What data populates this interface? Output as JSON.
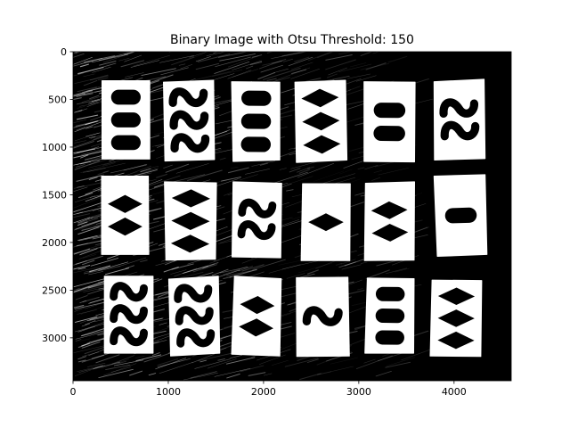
{
  "chart_data": {
    "type": "image",
    "title": "Binary Image with Otsu Threshold: 150",
    "xlabel": "",
    "ylabel": "",
    "xlim": [
      0,
      4600
    ],
    "ylim": [
      3450,
      0
    ],
    "xticks": [
      0,
      1000,
      2000,
      3000,
      4000
    ],
    "yticks": [
      0,
      500,
      1000,
      1500,
      2000,
      2500,
      3000
    ],
    "xtick_labels": [
      "0",
      "1000",
      "2000",
      "3000",
      "4000"
    ],
    "ytick_labels": [
      "0",
      "500",
      "1000",
      "1500",
      "2000",
      "2500",
      "3000"
    ],
    "grid": false,
    "colormap": "gray",
    "background_color": "#000000",
    "foreground_color": "#ffffff",
    "cards": [
      {
        "row": 1,
        "col": 1,
        "count": 3,
        "shape": "oval",
        "corners": [
          [
            305,
            305
          ],
          [
            805,
            305
          ],
          [
            805,
            1125
          ],
          [
            305,
            1125
          ]
        ]
      },
      {
        "row": 1,
        "col": 2,
        "count": 3,
        "shape": "squiggle",
        "corners": [
          [
            950,
            320
          ],
          [
            1475,
            300
          ],
          [
            1485,
            1130
          ],
          [
            965,
            1145
          ]
        ]
      },
      {
        "row": 1,
        "col": 3,
        "count": 3,
        "shape": "oval",
        "corners": [
          [
            1665,
            315
          ],
          [
            2170,
            320
          ],
          [
            2170,
            1135
          ],
          [
            1680,
            1150
          ]
        ]
      },
      {
        "row": 1,
        "col": 4,
        "count": 3,
        "shape": "diamond",
        "corners": [
          [
            2330,
            320
          ],
          [
            2860,
            300
          ],
          [
            2875,
            1135
          ],
          [
            2345,
            1160
          ]
        ]
      },
      {
        "row": 1,
        "col": 5,
        "count": 2,
        "shape": "oval",
        "corners": [
          [
            3055,
            315
          ],
          [
            3590,
            320
          ],
          [
            3585,
            1155
          ],
          [
            3055,
            1150
          ]
        ]
      },
      {
        "row": 1,
        "col": 6,
        "count": 2,
        "shape": "squiggle",
        "corners": [
          [
            3790,
            315
          ],
          [
            4315,
            290
          ],
          [
            4325,
            1120
          ],
          [
            3795,
            1135
          ]
        ]
      },
      {
        "row": 2,
        "col": 1,
        "count": 2,
        "shape": "diamond",
        "corners": [
          [
            300,
            1305
          ],
          [
            790,
            1305
          ],
          [
            795,
            2125
          ],
          [
            300,
            2125
          ]
        ]
      },
      {
        "row": 2,
        "col": 3,
        "count": 2,
        "shape": "squiggle",
        "corners": [
          [
            1680,
            1365
          ],
          [
            2190,
            1380
          ],
          [
            2180,
            2160
          ],
          [
            1670,
            2150
          ]
        ]
      },
      {
        "row": 2,
        "col": 2,
        "count": 3,
        "shape": "diamond",
        "corners": [
          [
            960,
            1365
          ],
          [
            1505,
            1375
          ],
          [
            1495,
            2175
          ],
          [
            975,
            2185
          ]
        ]
      },
      {
        "row": 2,
        "col": 4,
        "count": 1,
        "shape": "diamond",
        "corners": [
          [
            2410,
            1385
          ],
          [
            2910,
            1385
          ],
          [
            2905,
            2190
          ],
          [
            2395,
            2190
          ]
        ]
      },
      {
        "row": 2,
        "col": 5,
        "count": 2,
        "shape": "diamond",
        "corners": [
          [
            3070,
            1380
          ],
          [
            3585,
            1365
          ],
          [
            3580,
            2185
          ],
          [
            3060,
            2190
          ]
        ]
      },
      {
        "row": 2,
        "col": 6,
        "count": 1,
        "shape": "oval",
        "corners": [
          [
            3790,
            1305
          ],
          [
            4325,
            1290
          ],
          [
            4345,
            2125
          ],
          [
            3825,
            2145
          ]
        ]
      },
      {
        "row": 3,
        "col": 1,
        "count": 3,
        "shape": "squiggle",
        "corners": [
          [
            330,
            2355
          ],
          [
            840,
            2355
          ],
          [
            840,
            3160
          ],
          [
            330,
            3160
          ]
        ]
      },
      {
        "row": 3,
        "col": 2,
        "count": 3,
        "shape": "squiggle",
        "corners": [
          [
            1005,
            2385
          ],
          [
            1525,
            2355
          ],
          [
            1540,
            3160
          ],
          [
            1025,
            3190
          ]
        ]
      },
      {
        "row": 3,
        "col": 3,
        "count": 2,
        "shape": "diamond",
        "corners": [
          [
            1695,
            2355
          ],
          [
            2185,
            2380
          ],
          [
            2170,
            3190
          ],
          [
            1665,
            3170
          ]
        ]
      },
      {
        "row": 3,
        "col": 4,
        "count": 1,
        "shape": "squiggle",
        "corners": [
          [
            2345,
            2370
          ],
          [
            2885,
            2365
          ],
          [
            2900,
            3190
          ],
          [
            2350,
            3195
          ]
        ]
      },
      {
        "row": 3,
        "col": 5,
        "count": 3,
        "shape": "oval",
        "corners": [
          [
            3090,
            2375
          ],
          [
            3580,
            2380
          ],
          [
            3575,
            3160
          ],
          [
            3065,
            3160
          ]
        ]
      },
      {
        "row": 3,
        "col": 6,
        "count": 3,
        "shape": "diamond",
        "corners": [
          [
            3770,
            2395
          ],
          [
            4290,
            2400
          ],
          [
            4280,
            3195
          ],
          [
            3750,
            3190
          ]
        ]
      }
    ]
  }
}
